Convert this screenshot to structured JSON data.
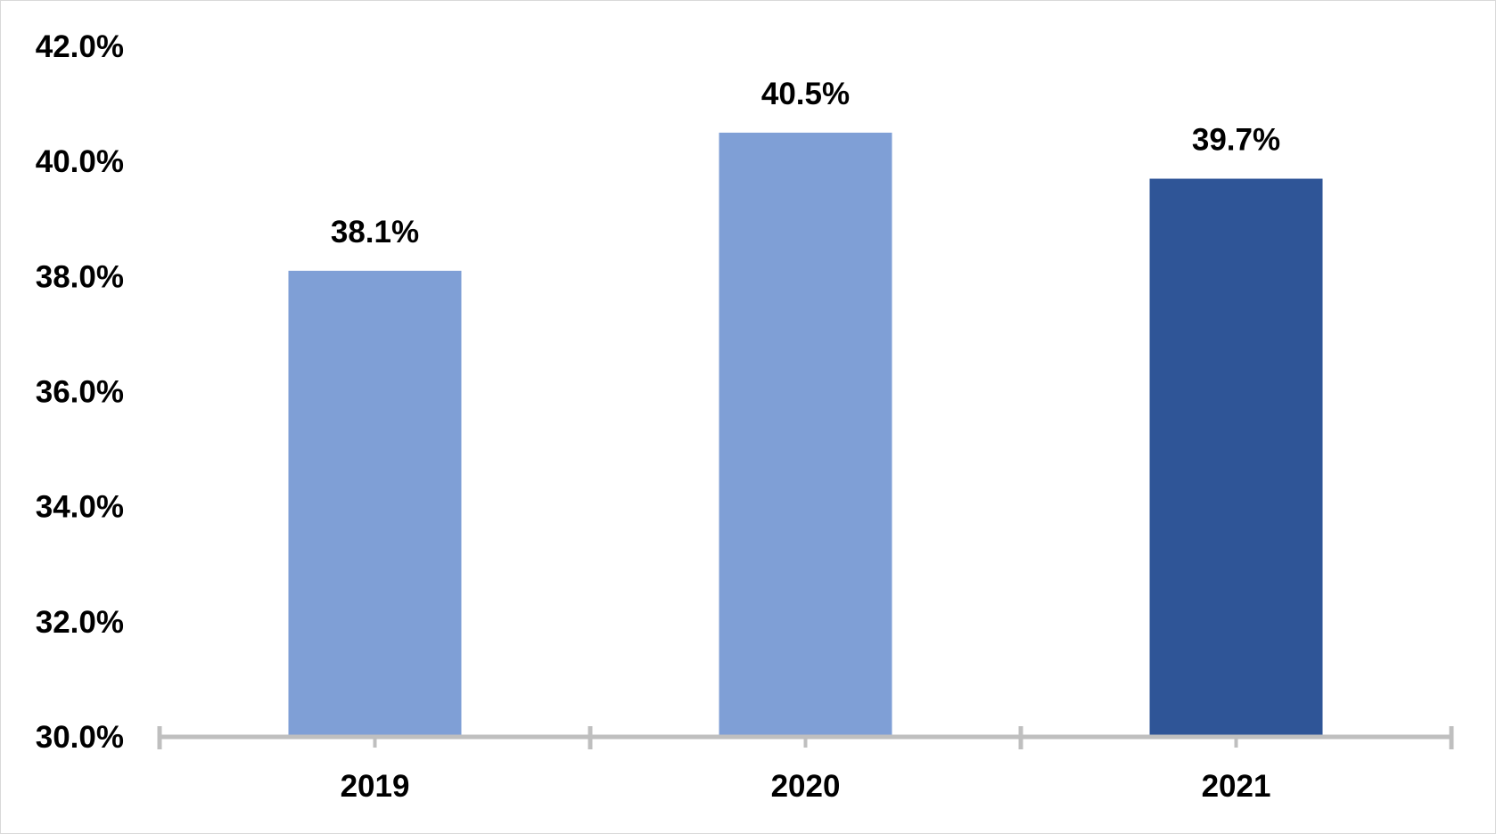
{
  "chart_data": {
    "type": "bar",
    "title": "",
    "xlabel": "",
    "ylabel": "",
    "categories": [
      "2019",
      "2020",
      "2021"
    ],
    "values": [
      38.1,
      40.5,
      39.7
    ],
    "data_labels": [
      "38.1%",
      "40.5%",
      "39.7%"
    ],
    "ylim": [
      30,
      42
    ],
    "yticks": [
      30,
      32,
      34,
      36,
      38,
      40,
      42
    ],
    "ytick_labels": [
      "30.0%",
      "32.0%",
      "34.0%",
      "36.0%",
      "38.0%",
      "40.0%",
      "42.0%"
    ],
    "bar_colors": [
      "#7f9fd6",
      "#7f9fd6",
      "#2f5597"
    ],
    "axis_color": "#bfbfbf",
    "grid": false,
    "legend": "none"
  }
}
